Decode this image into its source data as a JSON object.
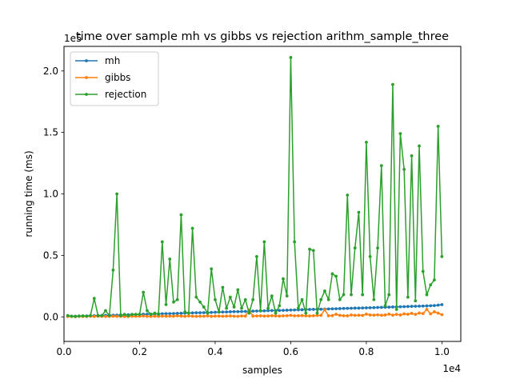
{
  "chart_data": {
    "type": "line",
    "title": "time over sample mh vs gibbs vs rejection arithm_sample_three",
    "xlabel": "samples",
    "ylabel": "running time (ms)",
    "x_offset_label": "1e4",
    "y_offset_label": "1e5",
    "xlim": [
      0,
      10500
    ],
    "ylim": [
      -20000,
      220000
    ],
    "x_ticks": [
      0,
      2000,
      4000,
      6000,
      8000,
      10000
    ],
    "x_tick_labels": [
      "0.0",
      "0.2",
      "0.4",
      "0.6",
      "0.8",
      "1.0"
    ],
    "y_ticks": [
      0,
      50000,
      100000,
      150000,
      200000
    ],
    "y_tick_labels": [
      "0.0",
      "0.5",
      "1.0",
      "1.5",
      "2.0"
    ],
    "legend_position": "top-left",
    "x": [
      100,
      200,
      300,
      400,
      500,
      600,
      700,
      800,
      900,
      1000,
      1100,
      1200,
      1300,
      1400,
      1500,
      1600,
      1700,
      1800,
      1900,
      2000,
      2100,
      2200,
      2300,
      2400,
      2500,
      2600,
      2700,
      2800,
      2900,
      3000,
      3100,
      3200,
      3300,
      3400,
      3500,
      3600,
      3700,
      3800,
      3900,
      4000,
      4100,
      4200,
      4300,
      4400,
      4500,
      4600,
      4700,
      4800,
      4900,
      5000,
      5100,
      5200,
      5300,
      5400,
      5500,
      5600,
      5700,
      5800,
      5900,
      6000,
      6100,
      6200,
      6300,
      6400,
      6500,
      6600,
      6700,
      6800,
      6900,
      7000,
      7100,
      7200,
      7300,
      7400,
      7500,
      7600,
      7700,
      7800,
      7900,
      8000,
      8100,
      8200,
      8300,
      8400,
      8500,
      8600,
      8700,
      8800,
      8900,
      9000,
      9100,
      9200,
      9300,
      9400,
      9500,
      9600,
      9700,
      9800,
      9900,
      10000
    ],
    "series": [
      {
        "name": "mh",
        "color": "#1f77b4",
        "values": [
          600,
          500,
          500,
          600,
          600,
          700,
          800,
          900,
          1000,
          1100,
          1200,
          1300,
          1300,
          1400,
          1500,
          1600,
          1700,
          1800,
          1900,
          2000,
          2100,
          2100,
          2200,
          2300,
          2400,
          2500,
          2600,
          2600,
          2700,
          2800,
          2900,
          3000,
          3100,
          3200,
          3300,
          3300,
          3400,
          3500,
          3600,
          3700,
          3800,
          3900,
          4000,
          4100,
          4200,
          4200,
          4300,
          4400,
          4500,
          4600,
          4700,
          4800,
          4900,
          5000,
          5100,
          5100,
          5200,
          5300,
          5400,
          5500,
          5600,
          5700,
          5800,
          5900,
          6000,
          6100,
          6200,
          6200,
          6300,
          6400,
          6500,
          6600,
          6700,
          6800,
          6900,
          7000,
          7100,
          7100,
          7200,
          7300,
          7400,
          7500,
          7600,
          7700,
          7800,
          7900,
          8000,
          8100,
          8200,
          8300,
          8400,
          8500,
          8600,
          8700,
          8800,
          8900,
          9000,
          9200,
          9500,
          9900
        ]
      },
      {
        "name": "gibbs",
        "color": "#ff7f0e",
        "values": [
          300,
          300,
          200,
          400,
          300,
          300,
          500,
          300,
          500,
          400,
          300,
          400,
          500,
          400,
          400,
          300,
          300,
          500,
          400,
          500,
          700,
          400,
          400,
          500,
          400,
          600,
          500,
          600,
          500,
          800,
          600,
          400,
          700,
          500,
          400,
          500,
          500,
          700,
          400,
          600,
          600,
          500,
          600,
          700,
          500,
          400,
          700,
          600,
          5500,
          600,
          700,
          800,
          600,
          700,
          900,
          700,
          600,
          800,
          900,
          1200,
          800,
          900,
          1000,
          800,
          700,
          900,
          1100,
          1200,
          5800,
          900,
          1000,
          2100,
          1200,
          900,
          800,
          1500,
          1200,
          1300,
          1100,
          2200,
          1500,
          1400,
          1600,
          1300,
          1500,
          2200,
          1400,
          2000,
          1500,
          2400,
          2100,
          2800,
          2000,
          3100,
          2700,
          6000,
          2400,
          4100,
          3000,
          1800
        ]
      },
      {
        "name": "rejection",
        "color": "#2ca02c",
        "values": [
          1000,
          500,
          300,
          600,
          800,
          500,
          1000,
          15000,
          1000,
          1000,
          5000,
          1000,
          38000,
          100000,
          1000,
          2000,
          1000,
          2000,
          2000,
          2000,
          20000,
          5000,
          2000,
          3000,
          2000,
          61000,
          10000,
          47000,
          12000,
          14000,
          83000,
          4000,
          3000,
          72000,
          16000,
          12000,
          8000,
          3000,
          39000,
          14000,
          4000,
          24000,
          7000,
          16000,
          8000,
          22000,
          7000,
          14000,
          3000,
          14000,
          49000,
          5000,
          61000,
          7000,
          17000,
          3000,
          9000,
          31000,
          17000,
          211000,
          61000,
          7000,
          14000,
          3000,
          55000,
          54000,
          3000,
          14000,
          21000,
          14000,
          35000,
          33000,
          14000,
          18000,
          99000,
          18000,
          56000,
          85000,
          18000,
          142000,
          49000,
          14000,
          56000,
          123000,
          9000,
          18000,
          189000,
          6000,
          149000,
          120000,
          16000,
          131000,
          13000,
          139000,
          37000,
          18000,
          26000,
          30000,
          155000,
          49000
        ]
      }
    ]
  }
}
